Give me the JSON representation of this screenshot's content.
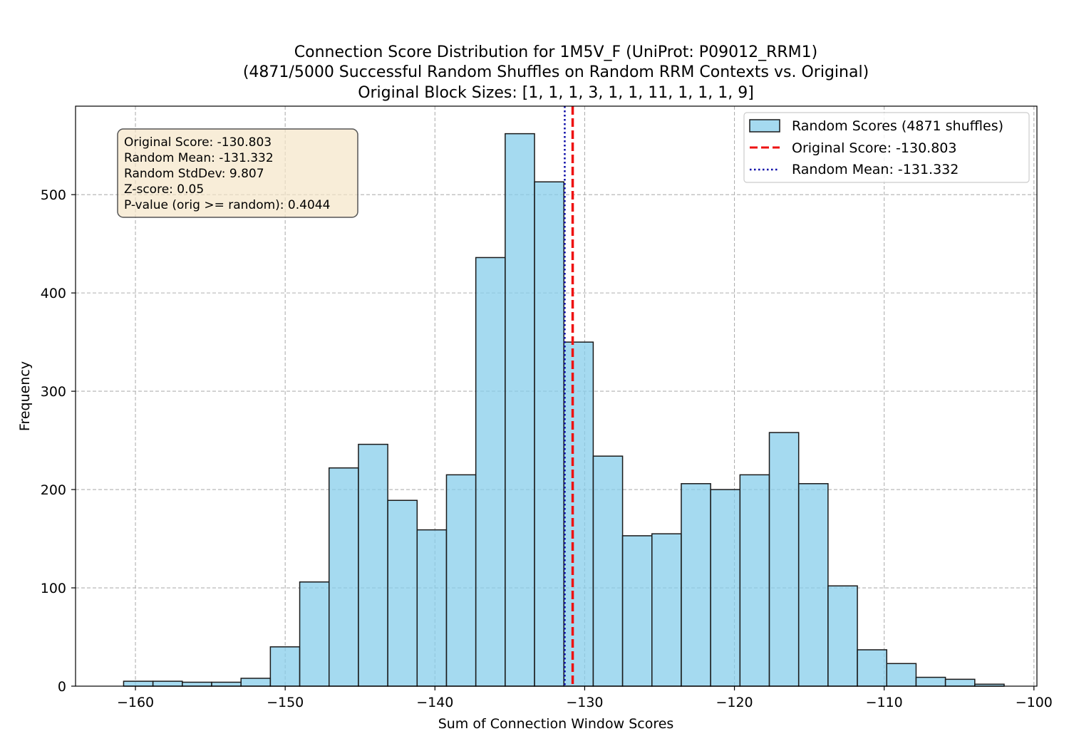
{
  "chart_data": {
    "type": "bar",
    "title": [
      "Connection Score Distribution for 1M5V_F (UniProt: P09012_RRM1)",
      "(4871/5000 Successful Random Shuffles on Random RRM Contexts vs. Original)",
      "Original Block Sizes: [1, 1, 1, 3, 1, 1, 11, 1, 1, 1, 9]"
    ],
    "xlabel": "Sum of Connection Window Scores",
    "ylabel": "Frequency",
    "xlim": [
      -164.0,
      -99.8
    ],
    "ylim": [
      0,
      590
    ],
    "grid": true,
    "xticks": [
      -160,
      -150,
      -140,
      -130,
      -120,
      -110,
      -100
    ],
    "xtick_labels": [
      "−160",
      "−150",
      "−140",
      "−130",
      "−120",
      "−110",
      "−100"
    ],
    "yticks": [
      0,
      100,
      200,
      300,
      400,
      500
    ],
    "ytick_labels": [
      "0",
      "100",
      "200",
      "300",
      "400",
      "500"
    ],
    "bins": {
      "start": -160.79,
      "width": 1.96,
      "counts": [
        5,
        5,
        4,
        4,
        8,
        40,
        106,
        222,
        246,
        189,
        159,
        215,
        436,
        562,
        513,
        350,
        234,
        153,
        155,
        206,
        200,
        215,
        258,
        206,
        102,
        37,
        23,
        9,
        7,
        2
      ]
    },
    "bar_color": "#87ceeb",
    "bar_edge_color": "#1a1a1a",
    "original_score": -130.803,
    "random_mean": -131.332,
    "original_line_color": "#ee1111",
    "mean_line_color": "#0a0aa8",
    "legend": {
      "placement": "top-right",
      "entries": [
        "Random Scores (4871 shuffles)",
        "Original Score: -130.803",
        "Random Mean: -131.332"
      ]
    },
    "stats_box": {
      "placement": "top-left",
      "lines": [
        "Original Score: -130.803",
        "Random Mean: -131.332",
        "Random StdDev: 9.807",
        "Z-score: 0.05",
        "P-value (orig >= random): 0.4044"
      ],
      "background": "#f5e6c8"
    }
  }
}
